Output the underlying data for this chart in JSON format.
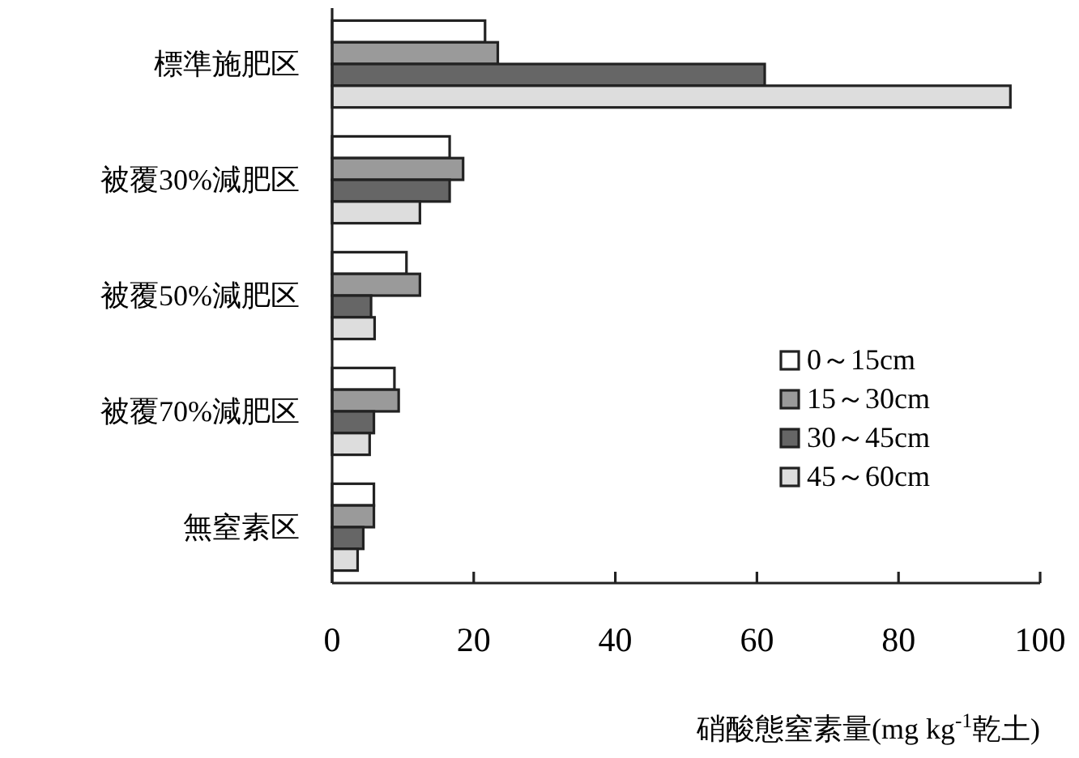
{
  "chart_data": {
    "type": "bar",
    "orientation": "horizontal",
    "xlabel": "硝酸態窒素量(mg kg$^{-1}$乾土)",
    "categories": [
      "標準施肥区",
      "被覆30%減肥区",
      "被覆50%減肥区",
      "被覆70%減肥区",
      "無窒素区"
    ],
    "series": [
      {
        "name": "0～15cm",
        "color": "#ffffff",
        "values": [
          21.6,
          16.6,
          10.5,
          8.8,
          5.9
        ]
      },
      {
        "name": "15～30cm",
        "color": "#9a9a9a",
        "values": [
          23.4,
          18.5,
          12.4,
          9.4,
          5.9
        ]
      },
      {
        "name": "30～45cm",
        "color": "#666666",
        "values": [
          61.1,
          16.6,
          5.5,
          5.9,
          4.4
        ]
      },
      {
        "name": "45～60cm",
        "color": "#dddddd",
        "values": [
          95.8,
          12.4,
          6.0,
          5.3,
          3.6
        ]
      }
    ],
    "xlim": [
      0,
      100
    ],
    "xticks": [
      0,
      20,
      40,
      60,
      80,
      100
    ],
    "legend": "right",
    "grid": false
  }
}
